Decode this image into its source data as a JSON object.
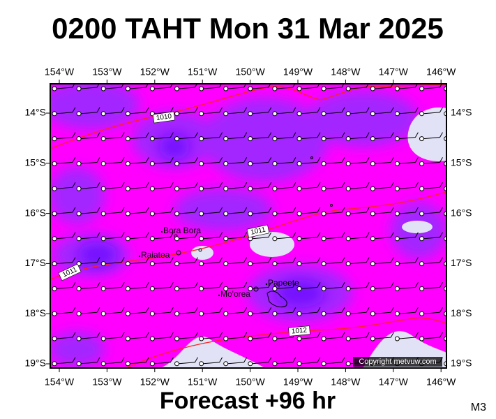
{
  "title": "0200 TAHT Mon 31 Mar 2025",
  "longitudes": [
    "154°W",
    "153°W",
    "152°W",
    "151°W",
    "150°W",
    "149°W",
    "148°W",
    "147°W",
    "146°W"
  ],
  "latitudes": [
    "14°S",
    "15°S",
    "16°S",
    "17°S",
    "18°S",
    "19°S"
  ],
  "isobar_labels": [
    "1010",
    "1011",
    "1011",
    "1012"
  ],
  "places": [
    "Bora Bora",
    "Raiatea",
    "Mo'orea",
    "Papeete"
  ],
  "copyright": "Copyright metvuw.com",
  "footer": "Forecast +96 hr",
  "model": "M3"
}
